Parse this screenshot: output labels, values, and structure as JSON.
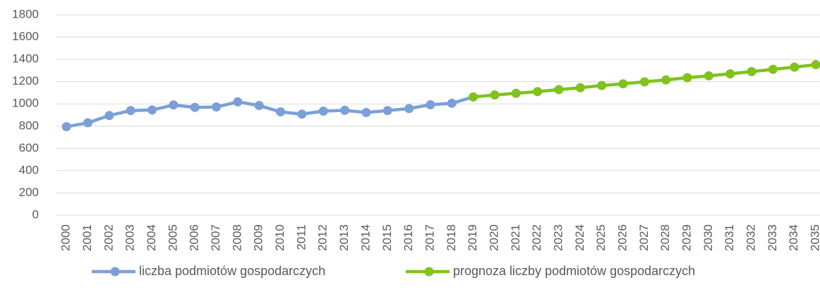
{
  "chart_data": {
    "type": "line",
    "categories": [
      "2000",
      "2001",
      "2002",
      "2003",
      "2004",
      "2005",
      "2006",
      "2007",
      "2008",
      "2009",
      "2010",
      "2011",
      "2012",
      "2013",
      "2014",
      "2015",
      "2016",
      "2017",
      "2018",
      "2019",
      "2020",
      "2021",
      "2022",
      "2023",
      "2024",
      "2025",
      "2026",
      "2027",
      "2028",
      "2029",
      "2030",
      "2031",
      "2032",
      "2033",
      "2034",
      "2035"
    ],
    "series": [
      {
        "name": "liczba podmiotów gospodarczych",
        "color": "#7ba0d8",
        "values": [
          795,
          830,
          895,
          940,
          945,
          990,
          968,
          972,
          1018,
          985,
          928,
          908,
          935,
          942,
          922,
          940,
          958,
          992,
          1005,
          1062,
          null,
          null,
          null,
          null,
          null,
          null,
          null,
          null,
          null,
          null,
          null,
          null,
          null,
          null,
          null,
          null
        ]
      },
      {
        "name": "prognoza liczby podmiotów gospodarczych",
        "color": "#7fc31c",
        "values": [
          null,
          null,
          null,
          null,
          null,
          null,
          null,
          null,
          null,
          null,
          null,
          null,
          null,
          null,
          null,
          null,
          null,
          null,
          null,
          1062,
          1080,
          1095,
          1110,
          1128,
          1145,
          1165,
          1180,
          1198,
          1215,
          1235,
          1252,
          1270,
          1290,
          1310,
          1330,
          1352
        ]
      }
    ],
    "ylim": [
      0,
      1800
    ],
    "yticks": [
      0,
      200,
      400,
      600,
      800,
      1000,
      1200,
      1400,
      1600,
      1800
    ],
    "grid": true
  }
}
